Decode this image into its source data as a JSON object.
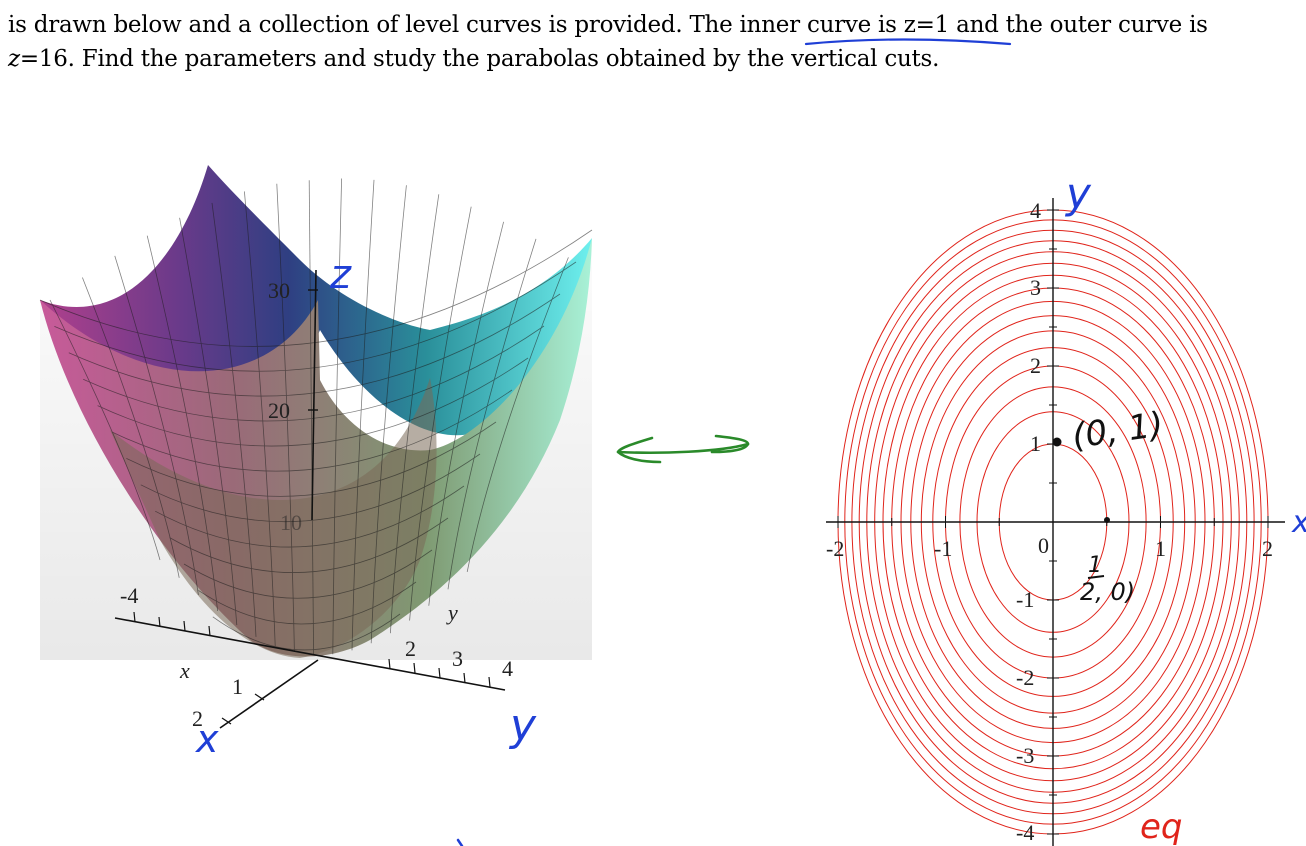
{
  "problem_text": {
    "line1_before": "is drawn below and a collection of level curves is provided.  The ",
    "line1_underlined": "inner curve is z=1",
    "line1_after": " and the outer curve is",
    "line2_z": "z",
    "line2_rest": "=16.  Find the parameters and study the parabolas obtained by the vertical cuts."
  },
  "surface_plot": {
    "z_ticks": [
      "30",
      "20",
      "10"
    ],
    "x_axis_label": "x",
    "x_ticks": [
      "1",
      "2"
    ],
    "y_axis_label": "y",
    "y_ticks": [
      "-4",
      "2",
      "3",
      "4"
    ],
    "hand_label_z": "z",
    "hand_label_x": "x",
    "hand_label_y": "y"
  },
  "contour_plot": {
    "x_ticks": [
      "-2",
      "-1",
      "0",
      "1",
      "2"
    ],
    "y_ticks": [
      "4",
      "3",
      "2",
      "1",
      "-1",
      "-2",
      "-3",
      "-4"
    ],
    "ellipse_count": 16,
    "hand_label_y": "y",
    "hand_label_x": "x",
    "hand_label_eq": "eq",
    "point_annotation_1": "(0, 1)",
    "point_annotation_2_num": "1",
    "point_annotation_2_den": "2, 0)",
    "curve_color": "#e0241b"
  },
  "colors": {
    "ink_blue": "#1f3fd6",
    "ink_green": "#2a8a2a",
    "ink_red": "#e0241b",
    "ink_black": "#111111"
  }
}
